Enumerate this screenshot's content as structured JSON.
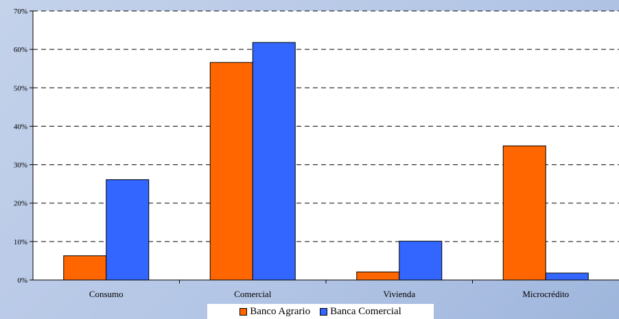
{
  "chart_data": {
    "type": "bar",
    "categories": [
      "Consumo",
      "Comercial",
      "Vivienda",
      "Microcrédito"
    ],
    "series": [
      {
        "name": "Banco Agrario",
        "values": [
          6.3,
          56.6,
          2.1,
          34.9
        ],
        "color": "#ff6600"
      },
      {
        "name": "Banca Comercial",
        "values": [
          26.1,
          61.8,
          10.1,
          1.8
        ],
        "color": "#3366ff"
      }
    ],
    "ylim": [
      0,
      70
    ],
    "yticks": [
      "0%",
      "10%",
      "20%",
      "30%",
      "40%",
      "50%",
      "60%",
      "70%"
    ],
    "grid": true,
    "legend_position": "bottom",
    "plot_background": "#ffffff"
  }
}
